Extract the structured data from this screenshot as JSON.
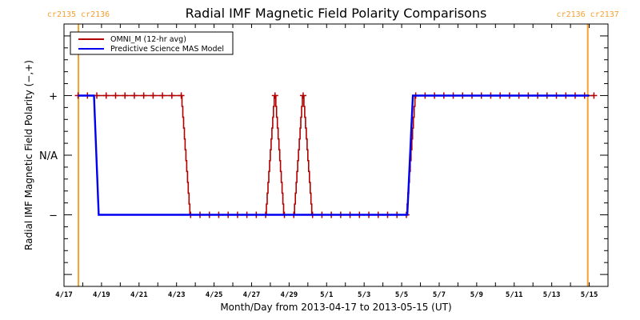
{
  "chart_data": {
    "type": "line",
    "title": "Radial IMF Magnetic Field Polarity Comparisons",
    "xlabel": "Month/Day from 2013-04-17 to 2013-05-15 (UT)",
    "ylabel": "Radial IMF Magnetic Field Polarity (−,+)",
    "x_units": "days since 2013-04-17 00:00 UT",
    "xlim": [
      0,
      29
    ],
    "ylim": [
      -2.2,
      2.2
    ],
    "x_major_ticks": [
      {
        "day": 0,
        "label": "4/17"
      },
      {
        "day": 2,
        "label": "4/19"
      },
      {
        "day": 4,
        "label": "4/21"
      },
      {
        "day": 6,
        "label": "4/23"
      },
      {
        "day": 8,
        "label": "4/25"
      },
      {
        "day": 10,
        "label": "4/27"
      },
      {
        "day": 12,
        "label": "4/29"
      },
      {
        "day": 14,
        "label": "5/1"
      },
      {
        "day": 16,
        "label": "5/3"
      },
      {
        "day": 18,
        "label": "5/5"
      },
      {
        "day": 20,
        "label": "5/7"
      },
      {
        "day": 22,
        "label": "5/9"
      },
      {
        "day": 24,
        "label": "5/11"
      },
      {
        "day": 26,
        "label": "5/13"
      },
      {
        "day": 28,
        "label": "5/15"
      }
    ],
    "y_ticks": [
      {
        "value": 1,
        "label": "+"
      },
      {
        "value": 0,
        "label": "N/A"
      },
      {
        "value": -1,
        "label": "−"
      }
    ],
    "carrington_markers": [
      {
        "day": 0.77,
        "label": "cr2135 cr2136"
      },
      {
        "day": 27.92,
        "label": "cr2136 cr2137"
      }
    ],
    "legend": {
      "placement": "top-left",
      "entries": [
        {
          "name": "OMNI_M (12-hr avg)",
          "color": "#b00000"
        },
        {
          "name": "Predictive Science MAS Model",
          "color": "#0000ee"
        }
      ]
    },
    "series": [
      {
        "name": "OMNI_M (12-hr avg)",
        "color": "#b00000",
        "marker": "+",
        "x": [
          0.75,
          1.25,
          1.75,
          2.25,
          2.75,
          3.25,
          3.75,
          4.25,
          4.75,
          5.25,
          5.75,
          6.25,
          6.75,
          7.25,
          7.75,
          8.25,
          8.75,
          9.25,
          9.75,
          10.25,
          10.75,
          11.25,
          11.75,
          12.25,
          12.75,
          13.25,
          13.75,
          14.25,
          14.75,
          15.25,
          15.75,
          16.25,
          16.75,
          17.25,
          17.75,
          18.25,
          18.75,
          19.25,
          19.75,
          20.25,
          20.75,
          21.25,
          21.75,
          22.25,
          22.75,
          23.25,
          23.75,
          24.25,
          24.75,
          25.25,
          25.75,
          26.25,
          26.75,
          27.25,
          27.75,
          28.25
        ],
        "values": [
          1,
          1,
          1,
          1,
          1,
          1,
          1,
          1,
          1,
          1,
          1,
          1,
          -1,
          -1,
          -1,
          -1,
          -1,
          -1,
          -1,
          -1,
          -1,
          1,
          -1,
          -1,
          1,
          -1,
          -1,
          -1,
          -1,
          -1,
          -1,
          -1,
          -1,
          -1,
          -1,
          -1,
          1,
          1,
          1,
          1,
          1,
          1,
          1,
          1,
          1,
          1,
          1,
          1,
          1,
          1,
          1,
          1,
          1,
          1,
          1,
          1
        ]
      },
      {
        "name": "Predictive Science MAS Model",
        "color": "#0000ee",
        "marker": "none",
        "x": [
          0.75,
          1.6,
          1.85,
          18.3,
          18.6,
          28.0
        ],
        "values": [
          1,
          1,
          -1,
          -1,
          1,
          1
        ]
      }
    ],
    "colors": {
      "cr_line": "#f5a030",
      "axis": "#000000"
    }
  }
}
